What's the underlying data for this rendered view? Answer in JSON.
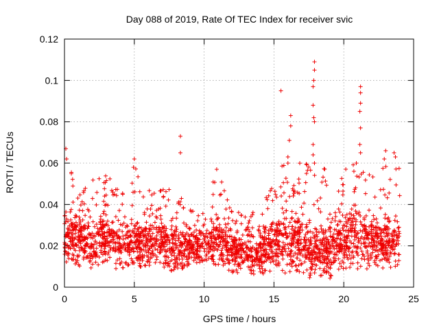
{
  "chart_data": {
    "type": "scatter",
    "title": "Day 088 of 2019, Rate Of TEC Index for receiver svic",
    "xlabel": "GPS time / hours",
    "ylabel": "ROTI / TECUs",
    "xlim": [
      0,
      25
    ],
    "ylim": [
      0,
      0.12
    ],
    "x_ticks": [
      0,
      5,
      10,
      15,
      20,
      25
    ],
    "y_ticks": [
      0,
      0.02,
      0.04,
      0.06,
      0.08,
      0.1,
      0.12
    ],
    "x_tick_labels": [
      "0",
      "5",
      "10",
      "15",
      "20",
      "25"
    ],
    "y_tick_labels": [
      "0",
      "0.02",
      "0.04",
      "0.06",
      "0.08",
      "0.1",
      "0.12"
    ],
    "grid": true,
    "marker": "plus",
    "series": [
      {
        "name": "ROTI",
        "color": "#ee0000",
        "envelope": {
          "note": "Dense point cloud; per-hour approximate median and upper extent of ROTI values",
          "hours": [
            0,
            1,
            2,
            3,
            4,
            5,
            6,
            7,
            8,
            9,
            10,
            11,
            12,
            13,
            14,
            15,
            16,
            17,
            18,
            19,
            20,
            21,
            22,
            23,
            24
          ],
          "median": [
            0.024,
            0.022,
            0.021,
            0.024,
            0.02,
            0.021,
            0.022,
            0.021,
            0.02,
            0.019,
            0.019,
            0.022,
            0.017,
            0.016,
            0.016,
            0.022,
            0.024,
            0.02,
            0.018,
            0.017,
            0.022,
            0.024,
            0.023,
            0.021,
            0.022
          ],
          "max": [
            0.066,
            0.045,
            0.052,
            0.055,
            0.046,
            0.06,
            0.049,
            0.053,
            0.046,
            0.038,
            0.042,
            0.056,
            0.04,
            0.036,
            0.04,
            0.05,
            0.083,
            0.06,
            0.108,
            0.04,
            0.055,
            0.097,
            0.058,
            0.066,
            0.063
          ],
          "min": [
            0.012,
            0.01,
            0.008,
            0.01,
            0.008,
            0.009,
            0.01,
            0.009,
            0.007,
            0.008,
            0.009,
            0.01,
            0.007,
            0.006,
            0.006,
            0.008,
            0.006,
            0.005,
            0.004,
            0.004,
            0.008,
            0.008,
            0.009,
            0.009,
            0.01
          ]
        },
        "notable_points": [
          {
            "x": 0.1,
            "y": 0.067
          },
          {
            "x": 0.15,
            "y": 0.062
          },
          {
            "x": 5.0,
            "y": 0.062
          },
          {
            "x": 8.3,
            "y": 0.073
          },
          {
            "x": 8.3,
            "y": 0.065
          },
          {
            "x": 10.9,
            "y": 0.057
          },
          {
            "x": 15.5,
            "y": 0.095
          },
          {
            "x": 16.2,
            "y": 0.083
          },
          {
            "x": 16.2,
            "y": 0.078
          },
          {
            "x": 16.1,
            "y": 0.071
          },
          {
            "x": 16.0,
            "y": 0.063
          },
          {
            "x": 16.0,
            "y": 0.06
          },
          {
            "x": 17.9,
            "y": 0.109
          },
          {
            "x": 17.9,
            "y": 0.105
          },
          {
            "x": 17.85,
            "y": 0.1
          },
          {
            "x": 17.8,
            "y": 0.097
          },
          {
            "x": 17.8,
            "y": 0.088
          },
          {
            "x": 17.85,
            "y": 0.082
          },
          {
            "x": 17.9,
            "y": 0.08
          },
          {
            "x": 17.8,
            "y": 0.069
          },
          {
            "x": 17.8,
            "y": 0.064
          },
          {
            "x": 17.9,
            "y": 0.06
          },
          {
            "x": 21.2,
            "y": 0.097
          },
          {
            "x": 21.2,
            "y": 0.094
          },
          {
            "x": 21.2,
            "y": 0.089
          },
          {
            "x": 21.15,
            "y": 0.085
          },
          {
            "x": 21.2,
            "y": 0.077
          },
          {
            "x": 21.15,
            "y": 0.069
          },
          {
            "x": 21.2,
            "y": 0.065
          },
          {
            "x": 20.9,
            "y": 0.06
          },
          {
            "x": 23.0,
            "y": 0.066
          },
          {
            "x": 23.6,
            "y": 0.065
          },
          {
            "x": 23.7,
            "y": 0.063
          },
          {
            "x": 22.9,
            "y": 0.062
          }
        ]
      }
    ]
  }
}
